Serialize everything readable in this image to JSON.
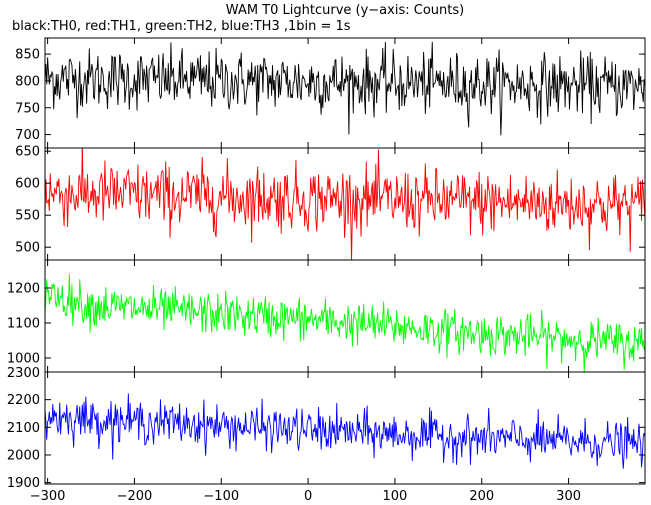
{
  "chart_data": {
    "type": "line",
    "title": "WAM T0 Lightcurve (y−axis: Counts)",
    "subtitle": "black:TH0, red:TH1, green:TH2, blue:TH3 ,1bin = 1s",
    "x_ticks": [
      -300,
      -200,
      -100,
      0,
      100,
      200,
      300
    ],
    "x_tick_labels": [
      "−300",
      "−200",
      "−100",
      "0",
      "100",
      "200",
      "300"
    ],
    "xlim": [
      -303,
      388
    ],
    "x_step": 1,
    "panels": [
      {
        "series": "TH0",
        "color": "#000000",
        "ylim": [
          675,
          880
        ],
        "y_ticks": [
          700,
          750,
          800,
          850
        ],
        "trend": [
          [
            -303,
            805
          ],
          [
            388,
            790
          ]
        ],
        "noise": 28
      },
      {
        "series": "TH1",
        "color": "#ff0000",
        "ylim": [
          480,
          655
        ],
        "y_ticks": [
          500,
          550,
          600,
          650
        ],
        "trend": [
          [
            -303,
            585
          ],
          [
            388,
            565
          ]
        ],
        "noise": 25
      },
      {
        "series": "TH2",
        "color": "#00ff00",
        "ylim": [
          960,
          1280
        ],
        "y_ticks": [
          1000,
          1100,
          1200
        ],
        "trend": [
          [
            -303,
            1190
          ],
          [
            -250,
            1150
          ],
          [
            0,
            1110
          ],
          [
            200,
            1070
          ],
          [
            388,
            1040
          ]
        ],
        "noise": 30
      },
      {
        "series": "TH3",
        "color": "#0000ff",
        "ylim": [
          1895,
          2300
        ],
        "y_ticks": [
          1900,
          2000,
          2100,
          2200,
          2300
        ],
        "trend": [
          [
            -303,
            2140
          ],
          [
            -250,
            2130
          ],
          [
            0,
            2090
          ],
          [
            200,
            2060
          ],
          [
            388,
            2040
          ]
        ],
        "noise": 38
      }
    ]
  }
}
